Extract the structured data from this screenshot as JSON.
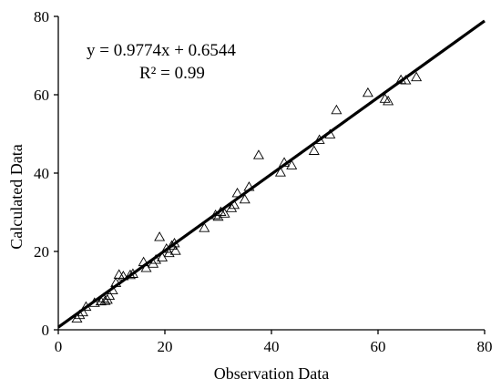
{
  "chart_data": {
    "type": "scatter",
    "xlabel": "Observation Data",
    "ylabel": "Calculated Data",
    "xlim": [
      0,
      80
    ],
    "ylim": [
      0,
      80
    ],
    "xticks": [
      "0",
      "20",
      "40",
      "60",
      "80"
    ],
    "yticks": [
      "0",
      "20",
      "40",
      "60",
      "80"
    ],
    "grid": false,
    "marker": "triangle-open",
    "colors": {
      "marker": "#000000",
      "line": "#000000",
      "axis": "#000000"
    },
    "annotations": {
      "equation": "y = 0.9774x + 0.6544",
      "r_squared": "R² = 0.99"
    },
    "trendline": {
      "slope": 0.9774,
      "intercept": 0.6544,
      "x_range": [
        0,
        80
      ]
    },
    "series": [
      {
        "x": [
          3.5,
          4.0,
          4.6,
          5.2,
          6.8,
          8.0,
          8.5,
          8.8,
          9.2,
          9.6,
          10.2,
          10.8,
          11.4,
          12.2,
          13.5,
          14.0,
          16.0,
          16.5,
          17.8,
          18.3,
          19.0,
          19.5,
          20.3,
          20.8,
          21.3,
          21.8,
          22.0,
          27.4,
          29.5,
          30.0,
          30.5,
          31.2,
          32.5,
          33.0,
          33.6,
          35.0,
          35.8,
          37.6,
          41.7,
          42.4,
          43.8,
          48.0,
          49.0,
          51.0,
          52.2,
          58.1,
          61.3,
          61.9,
          64.3,
          65.2,
          67.2
        ],
        "y": [
          2.8,
          3.7,
          4.4,
          5.8,
          6.8,
          7.2,
          8.0,
          7.3,
          7.6,
          8.6,
          10.0,
          11.9,
          14.0,
          13.6,
          13.9,
          14.2,
          17.2,
          15.7,
          16.8,
          17.8,
          23.6,
          18.4,
          20.6,
          19.5,
          21.4,
          22.0,
          20.1,
          25.9,
          29.2,
          28.8,
          30.0,
          29.6,
          31.0,
          31.8,
          34.8,
          33.2,
          36.4,
          44.5,
          40.1,
          42.6,
          41.9,
          45.6,
          48.4,
          49.8,
          56.0,
          60.4,
          58.9,
          58.3,
          63.7,
          63.6,
          64.4
        ]
      }
    ]
  }
}
